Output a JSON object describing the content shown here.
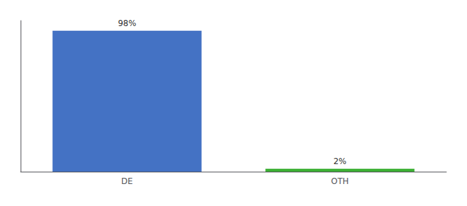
{
  "chart_data": {
    "type": "bar",
    "categories": [
      "DE",
      "OTH"
    ],
    "values": [
      98,
      2
    ],
    "value_labels": [
      "98%",
      "2%"
    ],
    "colors": [
      "#4472C4",
      "#3CB034"
    ],
    "ylim": [
      0,
      105
    ],
    "data_labels": true,
    "tick_labels": "x",
    "grid": false
  }
}
